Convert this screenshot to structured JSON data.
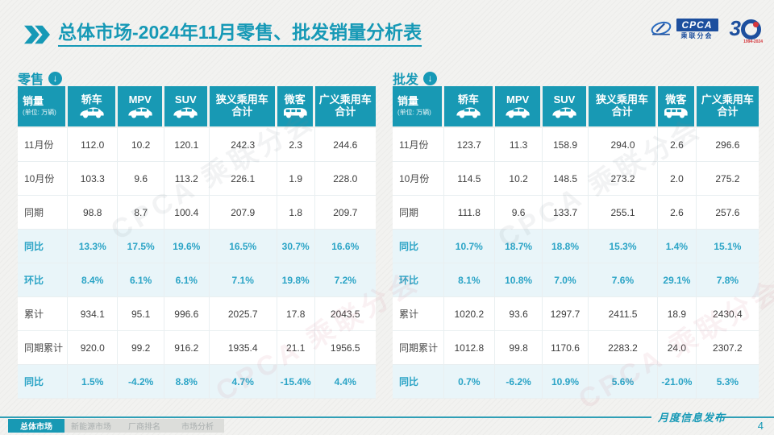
{
  "page": {
    "title_prefix": "总体市场",
    "title_rest": "-2024年11月零售、批发销量分析表"
  },
  "logos": {
    "cpca_abbr": "CPCA",
    "cpca_sub": "乘联分会",
    "anniversary_number": "3",
    "anniversary_years": "1994-2024"
  },
  "colors": {
    "accent": "#1899b4",
    "percent_text": "#2ba4c6",
    "percent_row_bg": "#e9f5f9",
    "logo_blue": "#1d4f9e",
    "logo_red": "#d5373c"
  },
  "columns": [
    {
      "label": "销量",
      "unit": "(单位: 万辆)"
    },
    {
      "label": "轿车",
      "icon": "car"
    },
    {
      "label": "MPV",
      "icon": "car"
    },
    {
      "label": "SUV",
      "icon": "car"
    },
    {
      "label": "狭义乘用车\n合计"
    },
    {
      "label": "微客",
      "icon": "van"
    },
    {
      "label": "广义乘用车\n合计"
    }
  ],
  "retail": {
    "label": "零售",
    "rows": [
      {
        "label": "11月份",
        "type": "normal",
        "values": [
          "112.0",
          "10.2",
          "120.1",
          "242.3",
          "2.3",
          "244.6"
        ]
      },
      {
        "label": "10月份",
        "type": "normal",
        "values": [
          "103.3",
          "9.6",
          "113.2",
          "226.1",
          "1.9",
          "228.0"
        ]
      },
      {
        "label": "同期",
        "type": "normal",
        "values": [
          "98.8",
          "8.7",
          "100.4",
          "207.9",
          "1.8",
          "209.7"
        ]
      },
      {
        "label": "同比",
        "type": "percent",
        "values": [
          "13.3%",
          "17.5%",
          "19.6%",
          "16.5%",
          "30.7%",
          "16.6%"
        ]
      },
      {
        "label": "环比",
        "type": "percent",
        "values": [
          "8.4%",
          "6.1%",
          "6.1%",
          "7.1%",
          "19.8%",
          "7.2%"
        ]
      },
      {
        "label": "累计",
        "type": "normal",
        "values": [
          "934.1",
          "95.1",
          "996.6",
          "2025.7",
          "17.8",
          "2043.5"
        ]
      },
      {
        "label": "同期累计",
        "type": "normal",
        "values": [
          "920.0",
          "99.2",
          "916.2",
          "1935.4",
          "21.1",
          "1956.5"
        ]
      },
      {
        "label": "同比",
        "type": "percent",
        "values": [
          "1.5%",
          "-4.2%",
          "8.8%",
          "4.7%",
          "-15.4%",
          "4.4%"
        ]
      }
    ]
  },
  "wholesale": {
    "label": "批发",
    "rows": [
      {
        "label": "11月份",
        "type": "normal",
        "values": [
          "123.7",
          "11.3",
          "158.9",
          "294.0",
          "2.6",
          "296.6"
        ]
      },
      {
        "label": "10月份",
        "type": "normal",
        "values": [
          "114.5",
          "10.2",
          "148.5",
          "273.2",
          "2.0",
          "275.2"
        ]
      },
      {
        "label": "同期",
        "type": "normal",
        "values": [
          "111.8",
          "9.6",
          "133.7",
          "255.1",
          "2.6",
          "257.6"
        ]
      },
      {
        "label": "同比",
        "type": "percent",
        "values": [
          "10.7%",
          "18.7%",
          "18.8%",
          "15.3%",
          "1.4%",
          "15.1%"
        ]
      },
      {
        "label": "环比",
        "type": "percent",
        "values": [
          "8.1%",
          "10.8%",
          "7.0%",
          "7.6%",
          "29.1%",
          "7.8%"
        ]
      },
      {
        "label": "累计",
        "type": "normal",
        "values": [
          "1020.2",
          "93.6",
          "1297.7",
          "2411.5",
          "18.9",
          "2430.4"
        ]
      },
      {
        "label": "同期累计",
        "type": "normal",
        "values": [
          "1012.8",
          "99.8",
          "1170.6",
          "2283.2",
          "24.0",
          "2307.2"
        ]
      },
      {
        "label": "同比",
        "type": "percent",
        "values": [
          "0.7%",
          "-6.2%",
          "10.9%",
          "5.6%",
          "-21.0%",
          "5.3%"
        ]
      }
    ]
  },
  "watermark": "CPCA 乘联分会",
  "footer": {
    "tabs": [
      "总体市场",
      "新能源市场",
      "厂商排名",
      "市场分析"
    ],
    "publication": "月度信息发布",
    "page_number": "4"
  }
}
